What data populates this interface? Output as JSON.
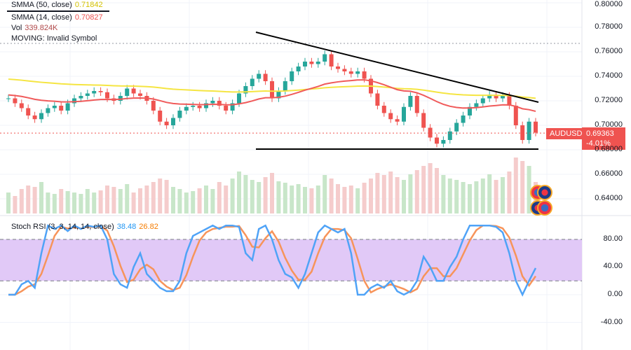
{
  "symbol": "AUDUSD",
  "legend": {
    "smma50": {
      "label": "SMMA (50, close)",
      "value": "0.71842"
    },
    "smma14": {
      "label": "SMMA (14, close)",
      "value": "0.70827"
    },
    "vol": {
      "label": "Vol",
      "value": "339.824K"
    },
    "moving": {
      "label": "MOVING: Invalid Symbol"
    },
    "stoch": {
      "label": "Stoch RSI (3, 3, 14, 14, close)",
      "k": "38.48",
      "d": "26.82"
    }
  },
  "price_tag": {
    "price": "0.69363",
    "change": "-4.01%"
  },
  "colors": {
    "up": "#26a69a",
    "down": "#ef5350",
    "smma14": "#f05a5a",
    "smma50": "#f5e542",
    "k": "#4fa3f7",
    "d": "#f7945a",
    "band": "#e1c9f7"
  },
  "chart_data": [
    {
      "type": "candlestick",
      "title": "AUDUSD",
      "ylim": [
        0.63,
        0.8
      ],
      "yticks": [
        "0.80000",
        "0.78000",
        "0.76000",
        "0.74000",
        "0.72000",
        "0.70000",
        "0.68000",
        "0.66000",
        "0.64000"
      ],
      "closes": [
        0.722,
        0.718,
        0.714,
        0.708,
        0.705,
        0.71,
        0.714,
        0.716,
        0.712,
        0.718,
        0.722,
        0.724,
        0.726,
        0.728,
        0.727,
        0.722,
        0.72,
        0.724,
        0.73,
        0.726,
        0.724,
        0.72,
        0.712,
        0.703,
        0.7,
        0.706,
        0.712,
        0.715,
        0.716,
        0.714,
        0.718,
        0.72,
        0.716,
        0.712,
        0.718,
        0.726,
        0.732,
        0.738,
        0.742,
        0.736,
        0.722,
        0.728,
        0.736,
        0.744,
        0.748,
        0.752,
        0.75,
        0.752,
        0.758,
        0.748,
        0.746,
        0.744,
        0.742,
        0.744,
        0.738,
        0.726,
        0.716,
        0.71,
        0.705,
        0.703,
        0.715,
        0.724,
        0.71,
        0.698,
        0.69,
        0.685,
        0.688,
        0.695,
        0.702,
        0.708,
        0.715,
        0.718,
        0.722,
        0.725,
        0.722,
        0.724,
        0.716,
        0.7,
        0.688,
        0.703,
        0.694
      ],
      "volumes": [
        30,
        25,
        35,
        40,
        38,
        45,
        30,
        28,
        35,
        32,
        30,
        28,
        35,
        30,
        33,
        40,
        38,
        35,
        42,
        30,
        36,
        40,
        45,
        50,
        48,
        38,
        35,
        30,
        32,
        36,
        40,
        35,
        45,
        40,
        50,
        60,
        55,
        48,
        45,
        52,
        58,
        46,
        44,
        40,
        42,
        38,
        36,
        40,
        55,
        50,
        42,
        38,
        40,
        36,
        44,
        50,
        58,
        55,
        60,
        52,
        48,
        56,
        62,
        68,
        72,
        65,
        55,
        50,
        48,
        45,
        42,
        46,
        50,
        56,
        48,
        52,
        60,
        80,
        75,
        68,
        45
      ]
    },
    {
      "type": "line",
      "title": "Stoch RSI (3, 3, 14, 14, close)",
      "ylim": [
        -60,
        110
      ],
      "yticks": [
        "80.00",
        "40.00",
        "0.00",
        "-40.00"
      ],
      "k": [
        0,
        0,
        15,
        20,
        10,
        60,
        100,
        95,
        100,
        92,
        100,
        95,
        100,
        98,
        100,
        80,
        30,
        15,
        10,
        40,
        60,
        30,
        20,
        10,
        5,
        5,
        20,
        60,
        85,
        90,
        95,
        100,
        95,
        100,
        100,
        98,
        60,
        50,
        95,
        100,
        80,
        50,
        30,
        25,
        10,
        30,
        60,
        90,
        100,
        95,
        90,
        95,
        60,
        0,
        0,
        10,
        15,
        10,
        20,
        5,
        0,
        5,
        20,
        55,
        40,
        20,
        20,
        40,
        55,
        80,
        100,
        100,
        100,
        100,
        98,
        90,
        60,
        20,
        0,
        20,
        38.48
      ]
    }
  ]
}
